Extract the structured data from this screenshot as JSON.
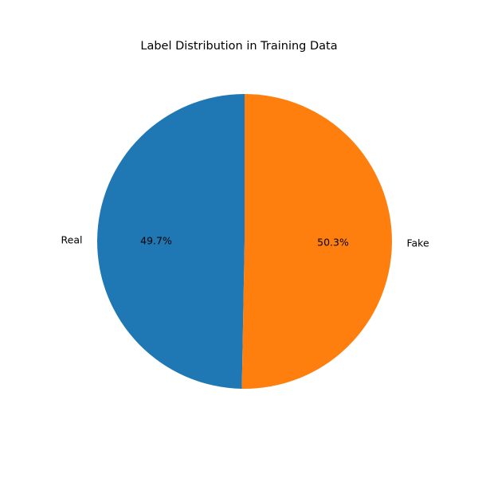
{
  "chart_data": {
    "type": "pie",
    "title": "Label Distribution in Training Data",
    "categories": [
      "Real",
      "Fake"
    ],
    "values": [
      49.7,
      50.3
    ],
    "value_labels": [
      "49.7%",
      "50.3%"
    ],
    "colors": [
      "#1f77b4",
      "#ff7f0e"
    ],
    "start_angle_deg": 90,
    "direction": "counterclockwise",
    "legend": "none"
  }
}
